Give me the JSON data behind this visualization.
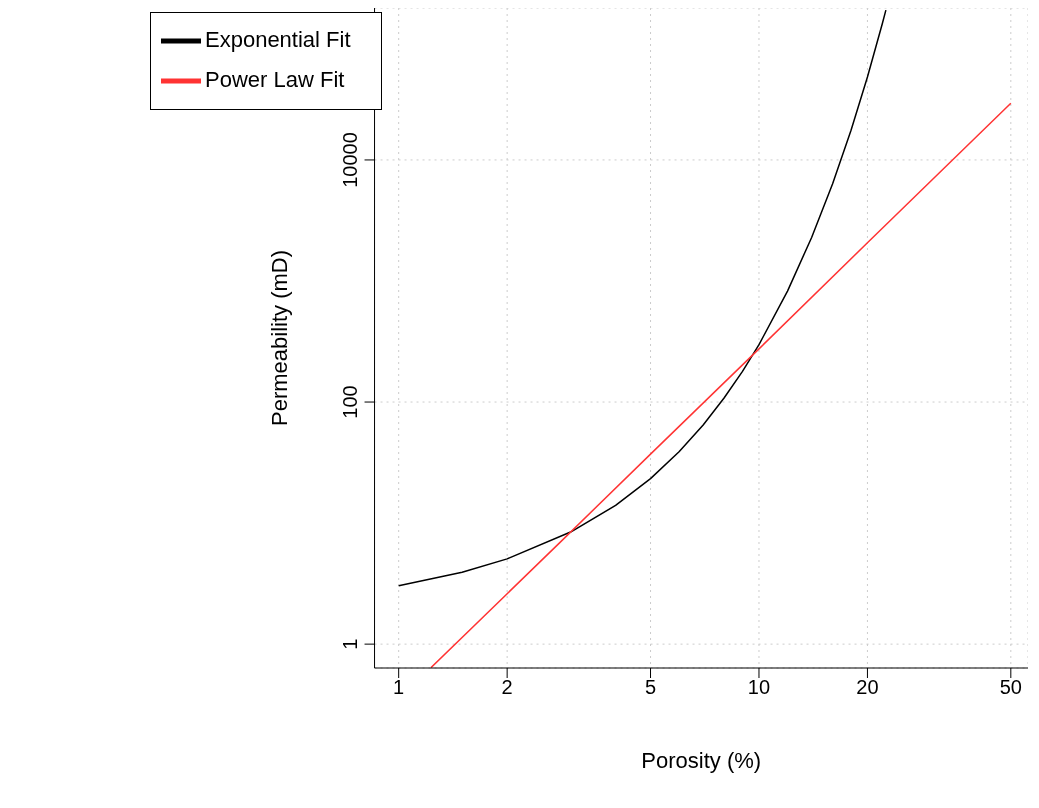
{
  "chart_data": {
    "type": "line",
    "xlabel": "Porosity (%)",
    "ylabel": "Permeability (mD)",
    "log": "xy",
    "xlim": [
      0.857,
      55.8
    ],
    "ylim": [
      0.635,
      180000
    ],
    "xticks": [
      1,
      2,
      5,
      10,
      20,
      50
    ],
    "yticks": [
      1,
      100,
      10000
    ],
    "grid": true,
    "legend": "top left",
    "marker": "none",
    "line_style": "solid",
    "series": [
      {
        "name": "Exponential Fit",
        "color": "#000000",
        "x": [
          1,
          1.5,
          2,
          3,
          4,
          5,
          6,
          7,
          8,
          9,
          10,
          12,
          14,
          16,
          18,
          20,
          22,
          22.5
        ],
        "values": [
          3.04,
          3.93,
          5.06,
          8.43,
          14.0,
          23.3,
          38.8,
          64.6,
          108,
          179,
          298,
          825,
          2290,
          6330,
          17500,
          48500,
          134000,
          173000
        ]
      },
      {
        "name": "Power Law Fit",
        "color": "#ff3333",
        "x": [
          1.23,
          2.8,
          5,
          10,
          20,
          50
        ],
        "values": [
          0.64,
          6.9,
          37.1,
          275,
          2070,
          29400
        ]
      }
    ]
  }
}
